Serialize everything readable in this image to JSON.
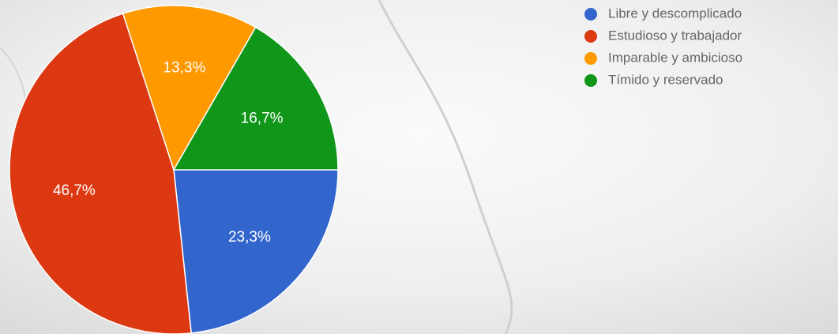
{
  "chart_data": {
    "type": "pie",
    "categories": [
      "Libre y descomplicado",
      "Estudioso y trabajador",
      "Imparable y ambicioso",
      "Tímido y reservado"
    ],
    "values": [
      23.3,
      46.7,
      13.3,
      16.7
    ],
    "value_labels": [
      "23,3%",
      "46,7%",
      "13,3%",
      "16,7%"
    ],
    "colors": [
      "#3366cc",
      "#dc3912",
      "#ff9900",
      "#109618"
    ],
    "legend": "right"
  }
}
